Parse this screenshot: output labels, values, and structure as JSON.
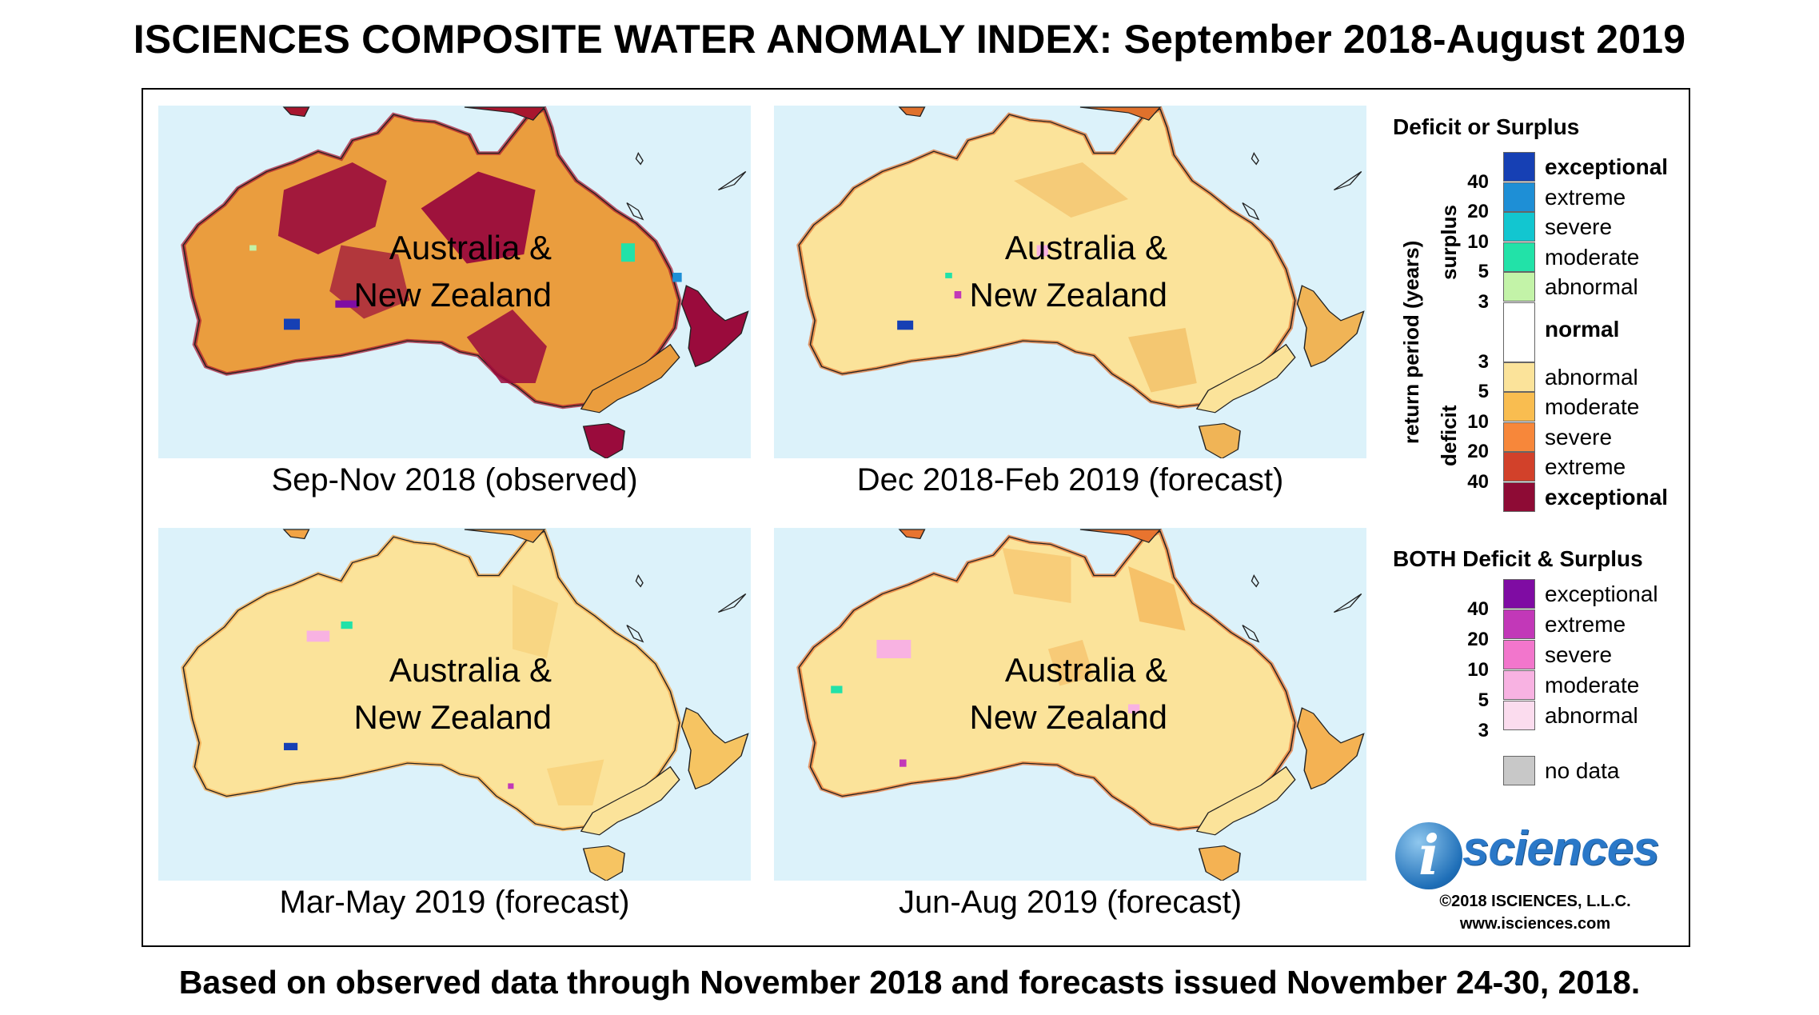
{
  "title": "ISCIENCES COMPOSITE WATER ANOMALY INDEX: September 2018-August 2019",
  "footer": "Based on observed data through November 2018 and forecasts issued November 24-30, 2018.",
  "region_label_line1": "Australia &",
  "region_label_line2": "New Zealand",
  "panels": [
    {
      "label": "Sep-Nov 2018 (observed)",
      "fill": "#ea9d3e",
      "accent": "#9a0b3c",
      "coast": "#a8162e"
    },
    {
      "label": "Dec 2018-Feb 2019 (forecast)",
      "fill": "#fbe39a",
      "accent": "#f0b456",
      "coast": "#e0712c"
    },
    {
      "label": "Mar-May 2019 (forecast)",
      "fill": "#fbe39a",
      "accent": "#f6c462",
      "coast": "#f2a445"
    },
    {
      "label": "Jun-Aug 2019 (forecast)",
      "fill": "#fbe39a",
      "accent": "#f4b253",
      "coast": "#e8742f"
    }
  ],
  "legend": {
    "title": "Deficit or Surplus",
    "axis_label": "return period (years)",
    "surplus_label": "surplus",
    "deficit_label": "deficit",
    "surplus": [
      {
        "label": "exceptional",
        "color": "#1640b4",
        "bold": true
      },
      {
        "label": "extreme",
        "color": "#1e8fd6",
        "bold": false
      },
      {
        "label": "severe",
        "color": "#12c6d0",
        "bold": false
      },
      {
        "label": "moderate",
        "color": "#22e2a8",
        "bold": false
      },
      {
        "label": "abnormal",
        "color": "#c3f3a8",
        "bold": false
      }
    ],
    "normal": {
      "label": "normal",
      "color": "#ffffff"
    },
    "deficit": [
      {
        "label": "abnormal",
        "color": "#fbe39a",
        "bold": false
      },
      {
        "label": "moderate",
        "color": "#f9bd50",
        "bold": false
      },
      {
        "label": "severe",
        "color": "#f7873a",
        "bold": false
      },
      {
        "label": "extreme",
        "color": "#d2412a",
        "bold": false
      },
      {
        "label": "exceptional",
        "color": "#8e0b35",
        "bold": true
      }
    ],
    "surplus_ticks": [
      "40",
      "20",
      "10",
      "5",
      "3"
    ],
    "deficit_ticks": [
      "3",
      "5",
      "10",
      "20",
      "40"
    ],
    "both_title": "BOTH Deficit & Surplus",
    "both": [
      {
        "label": "exceptional",
        "color": "#7f0ca3"
      },
      {
        "label": "extreme",
        "color": "#c238b8"
      },
      {
        "label": "severe",
        "color": "#f276cc"
      },
      {
        "label": "moderate",
        "color": "#f8b2e2"
      },
      {
        "label": "abnormal",
        "color": "#fbdcee"
      }
    ],
    "both_ticks": [
      "40",
      "20",
      "10",
      "5",
      "3"
    ],
    "no_data": {
      "label": "no data",
      "color": "#c8c8c8"
    }
  },
  "logo": {
    "letter": "i",
    "text": "sciences"
  },
  "copyright": "©2018 ISCIENCES, L.L.C.",
  "website": "www.isciences.com"
}
